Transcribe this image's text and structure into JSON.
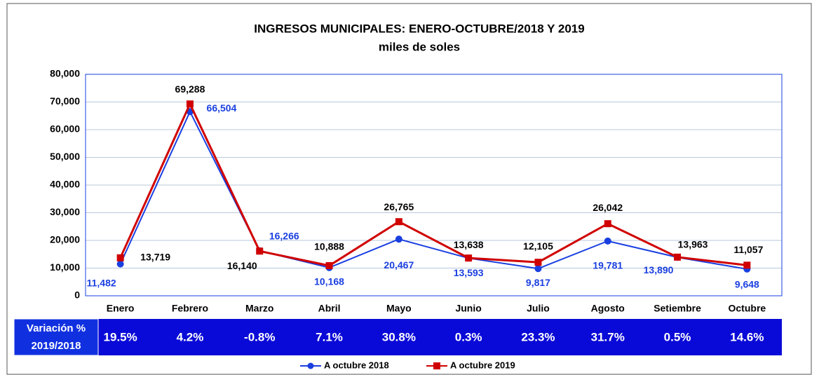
{
  "chart_data": {
    "type": "line",
    "title": "INGRESOS MUNICIPALES: ENERO-OCTUBRE/2018 Y 2019",
    "subtitle": "miles de soles",
    "categories": [
      "Enero",
      "Febrero",
      "Marzo",
      "Abril",
      "Mayo",
      "Junio",
      "Julio",
      "Agosto",
      "Setiembre",
      "Octubre"
    ],
    "series": [
      {
        "name": "A octubre 2018",
        "color": "#1a3fe0",
        "marker": "circle",
        "values": [
          11482,
          66504,
          16266,
          10168,
          20467,
          13593,
          9817,
          19781,
          13890,
          9648
        ],
        "value_labels": [
          "11,482",
          "66,504",
          "16,266",
          "10,168",
          "20,467",
          "13,593",
          "9,817",
          "19,781",
          "13,890",
          "9,648"
        ]
      },
      {
        "name": "A octubre 2019",
        "color": "#d00000",
        "marker": "square",
        "values": [
          13719,
          69288,
          16140,
          10888,
          26765,
          13638,
          12105,
          26042,
          13963,
          11057
        ],
        "value_labels": [
          "13,719",
          "69,288",
          "16,140",
          "10,888",
          "26,765",
          "13,638",
          "12,105",
          "26,042",
          "13,963",
          "11,057"
        ]
      }
    ],
    "ylim": [
      0,
      80000
    ],
    "yticks": [
      0,
      {
        "value": 10000,
        "label": "10,000"
      },
      {
        "value": 20000,
        "label": "20,000"
      },
      {
        "value": 30000,
        "label": "30,000"
      },
      {
        "value": 40000,
        "label": "40,000"
      },
      {
        "value": 50000,
        "label": "50,000"
      },
      {
        "value": 60000,
        "label": "60,000"
      },
      {
        "value": 70000,
        "label": "70,000"
      },
      {
        "value": 80000,
        "label": "80,000"
      }
    ],
    "grid": true,
    "legend": "bottom",
    "variation": {
      "label": [
        "Variación %",
        "2019/2018"
      ],
      "values": [
        19.5,
        4.2,
        -0.8,
        7.1,
        30.8,
        0.3,
        23.3,
        31.7,
        0.5,
        14.6
      ],
      "value_labels": [
        "19.5%",
        "4.2%",
        "-0.8%",
        "7.1%",
        "30.8%",
        "0.3%",
        "23.3%",
        "31.7%",
        "0.5%",
        "14.6%"
      ]
    }
  }
}
